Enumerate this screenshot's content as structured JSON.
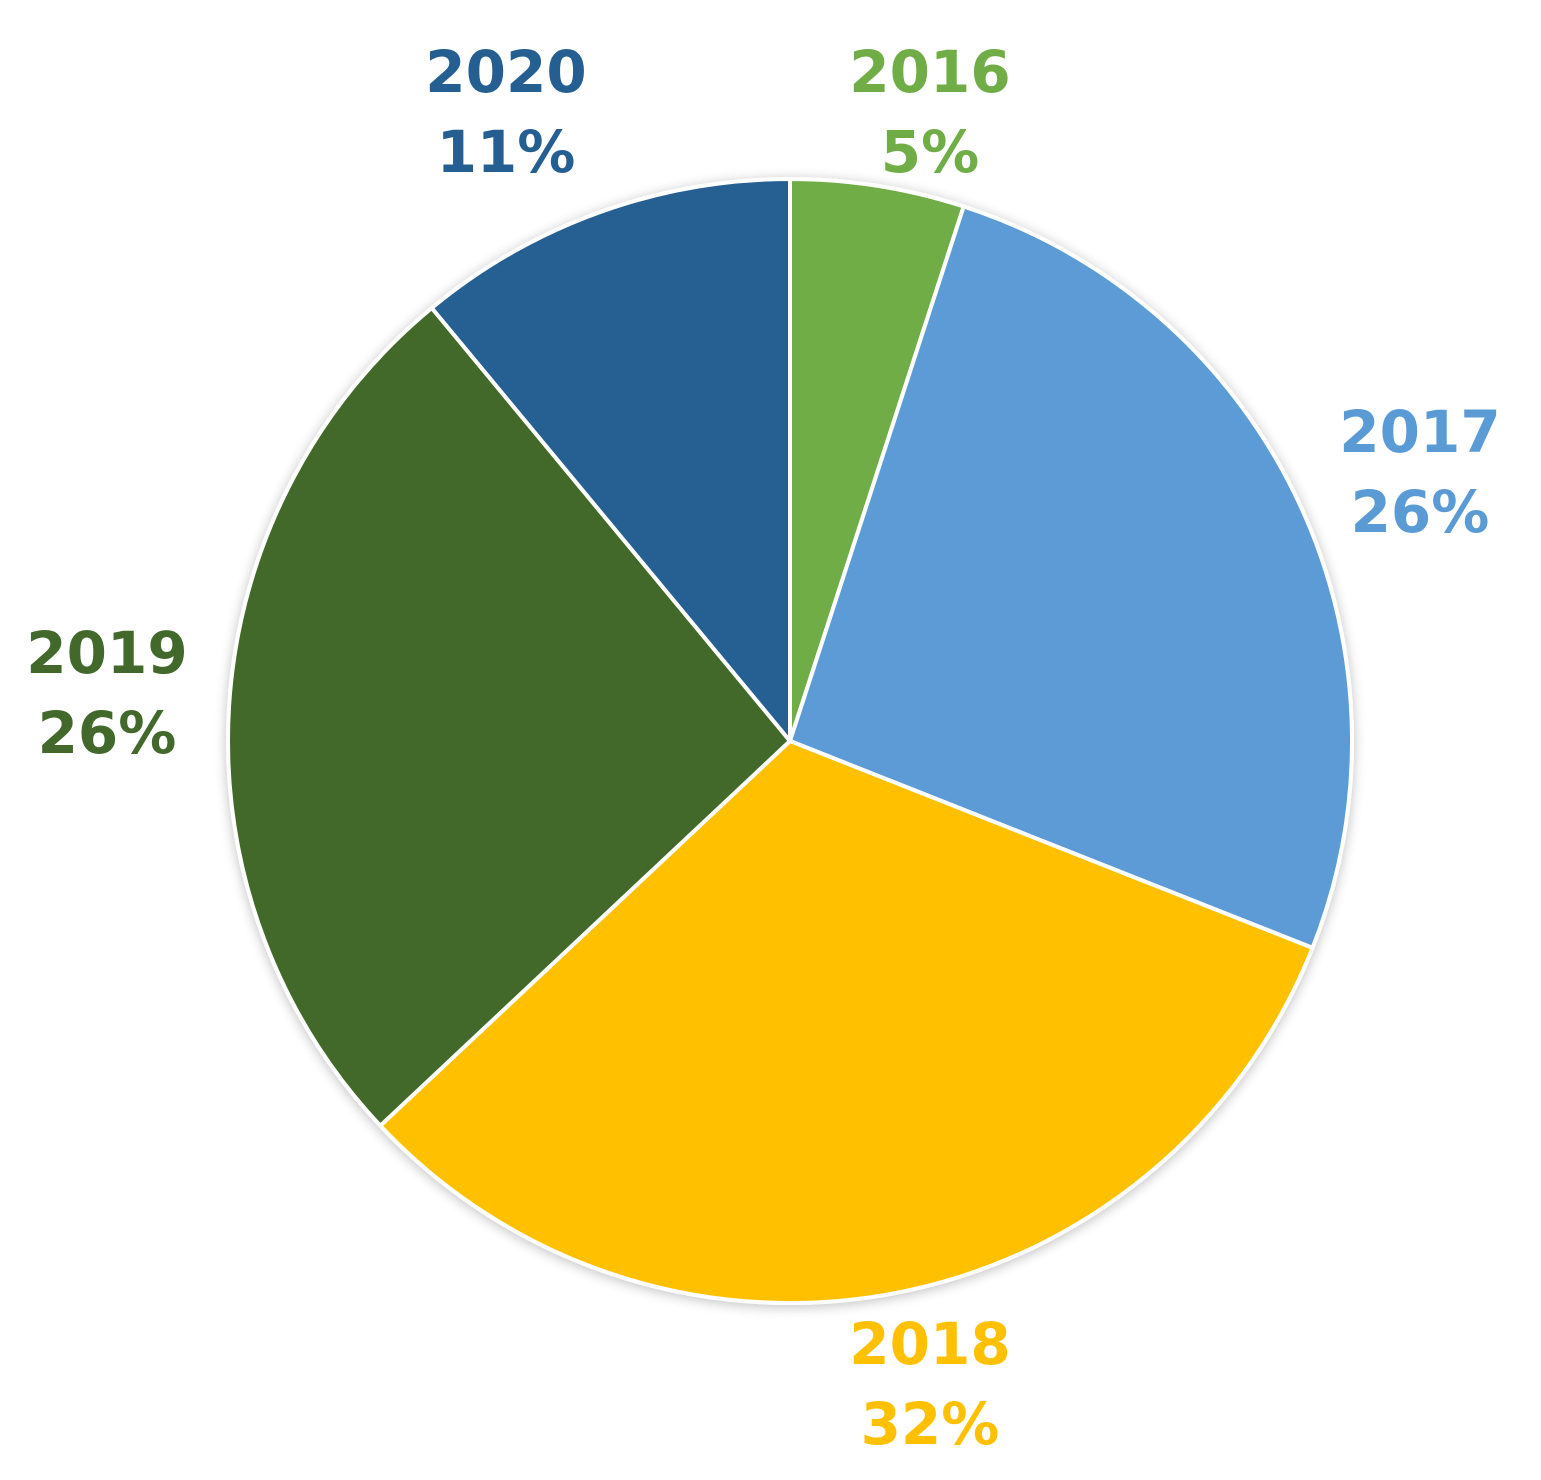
{
  "chart_data": {
    "type": "pie",
    "title": "",
    "start_angle_deg": 0,
    "direction": "clockwise",
    "slices": [
      {
        "label": "2016",
        "value": 5,
        "display": "5%",
        "color": "#70AD47"
      },
      {
        "label": "2017",
        "value": 26,
        "display": "26%",
        "color": "#5B9BD5"
      },
      {
        "label": "2018",
        "value": 32,
        "display": "32%",
        "color": "#FFC000"
      },
      {
        "label": "2019",
        "value": 26,
        "display": "26%",
        "color": "#43682B"
      },
      {
        "label": "2020",
        "value": 11,
        "display": "11%",
        "color": "#255E91"
      }
    ],
    "label_colors": [
      "#70AD47",
      "#5B9BD5",
      "#FFC000",
      "#43682B",
      "#255E91"
    ],
    "legend": "none",
    "data_labels": "outside"
  }
}
